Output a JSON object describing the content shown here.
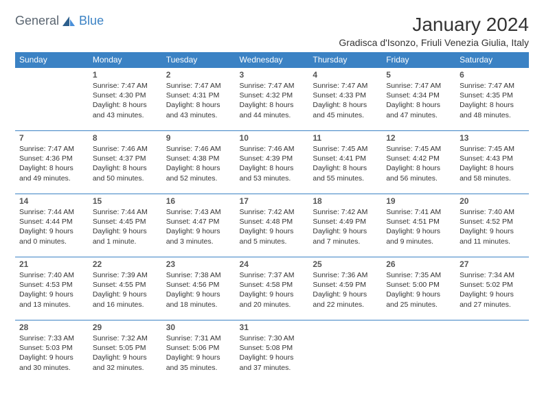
{
  "brand": {
    "part1": "General",
    "part2": "Blue"
  },
  "title": "January 2024",
  "location": "Gradisca d'Isonzo, Friuli Venezia Giulia, Italy",
  "colors": {
    "header_bg": "#3b82c4",
    "header_text": "#ffffff",
    "border": "#3b82c4",
    "text": "#333333",
    "logo_gray": "#5a6570",
    "logo_blue": "#3b82c4",
    "background": "#ffffff"
  },
  "day_headers": [
    "Sunday",
    "Monday",
    "Tuesday",
    "Wednesday",
    "Thursday",
    "Friday",
    "Saturday"
  ],
  "weeks": [
    [
      null,
      {
        "n": "1",
        "sr": "7:47 AM",
        "ss": "4:30 PM",
        "dl": "8 hours and 43 minutes."
      },
      {
        "n": "2",
        "sr": "7:47 AM",
        "ss": "4:31 PM",
        "dl": "8 hours and 43 minutes."
      },
      {
        "n": "3",
        "sr": "7:47 AM",
        "ss": "4:32 PM",
        "dl": "8 hours and 44 minutes."
      },
      {
        "n": "4",
        "sr": "7:47 AM",
        "ss": "4:33 PM",
        "dl": "8 hours and 45 minutes."
      },
      {
        "n": "5",
        "sr": "7:47 AM",
        "ss": "4:34 PM",
        "dl": "8 hours and 47 minutes."
      },
      {
        "n": "6",
        "sr": "7:47 AM",
        "ss": "4:35 PM",
        "dl": "8 hours and 48 minutes."
      }
    ],
    [
      {
        "n": "7",
        "sr": "7:47 AM",
        "ss": "4:36 PM",
        "dl": "8 hours and 49 minutes."
      },
      {
        "n": "8",
        "sr": "7:46 AM",
        "ss": "4:37 PM",
        "dl": "8 hours and 50 minutes."
      },
      {
        "n": "9",
        "sr": "7:46 AM",
        "ss": "4:38 PM",
        "dl": "8 hours and 52 minutes."
      },
      {
        "n": "10",
        "sr": "7:46 AM",
        "ss": "4:39 PM",
        "dl": "8 hours and 53 minutes."
      },
      {
        "n": "11",
        "sr": "7:45 AM",
        "ss": "4:41 PM",
        "dl": "8 hours and 55 minutes."
      },
      {
        "n": "12",
        "sr": "7:45 AM",
        "ss": "4:42 PM",
        "dl": "8 hours and 56 minutes."
      },
      {
        "n": "13",
        "sr": "7:45 AM",
        "ss": "4:43 PM",
        "dl": "8 hours and 58 minutes."
      }
    ],
    [
      {
        "n": "14",
        "sr": "7:44 AM",
        "ss": "4:44 PM",
        "dl": "9 hours and 0 minutes."
      },
      {
        "n": "15",
        "sr": "7:44 AM",
        "ss": "4:45 PM",
        "dl": "9 hours and 1 minute."
      },
      {
        "n": "16",
        "sr": "7:43 AM",
        "ss": "4:47 PM",
        "dl": "9 hours and 3 minutes."
      },
      {
        "n": "17",
        "sr": "7:42 AM",
        "ss": "4:48 PM",
        "dl": "9 hours and 5 minutes."
      },
      {
        "n": "18",
        "sr": "7:42 AM",
        "ss": "4:49 PM",
        "dl": "9 hours and 7 minutes."
      },
      {
        "n": "19",
        "sr": "7:41 AM",
        "ss": "4:51 PM",
        "dl": "9 hours and 9 minutes."
      },
      {
        "n": "20",
        "sr": "7:40 AM",
        "ss": "4:52 PM",
        "dl": "9 hours and 11 minutes."
      }
    ],
    [
      {
        "n": "21",
        "sr": "7:40 AM",
        "ss": "4:53 PM",
        "dl": "9 hours and 13 minutes."
      },
      {
        "n": "22",
        "sr": "7:39 AM",
        "ss": "4:55 PM",
        "dl": "9 hours and 16 minutes."
      },
      {
        "n": "23",
        "sr": "7:38 AM",
        "ss": "4:56 PM",
        "dl": "9 hours and 18 minutes."
      },
      {
        "n": "24",
        "sr": "7:37 AM",
        "ss": "4:58 PM",
        "dl": "9 hours and 20 minutes."
      },
      {
        "n": "25",
        "sr": "7:36 AM",
        "ss": "4:59 PM",
        "dl": "9 hours and 22 minutes."
      },
      {
        "n": "26",
        "sr": "7:35 AM",
        "ss": "5:00 PM",
        "dl": "9 hours and 25 minutes."
      },
      {
        "n": "27",
        "sr": "7:34 AM",
        "ss": "5:02 PM",
        "dl": "9 hours and 27 minutes."
      }
    ],
    [
      {
        "n": "28",
        "sr": "7:33 AM",
        "ss": "5:03 PM",
        "dl": "9 hours and 30 minutes."
      },
      {
        "n": "29",
        "sr": "7:32 AM",
        "ss": "5:05 PM",
        "dl": "9 hours and 32 minutes."
      },
      {
        "n": "30",
        "sr": "7:31 AM",
        "ss": "5:06 PM",
        "dl": "9 hours and 35 minutes."
      },
      {
        "n": "31",
        "sr": "7:30 AM",
        "ss": "5:08 PM",
        "dl": "9 hours and 37 minutes."
      },
      null,
      null,
      null
    ]
  ],
  "labels": {
    "sunrise": "Sunrise:",
    "sunset": "Sunset:",
    "daylight": "Daylight:"
  }
}
